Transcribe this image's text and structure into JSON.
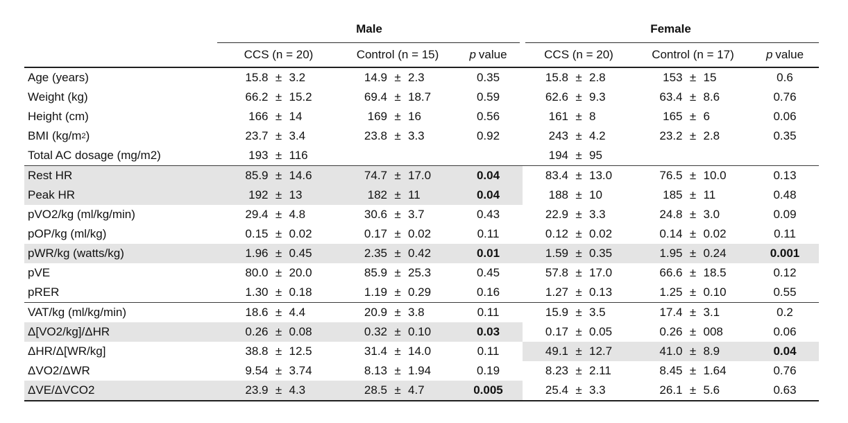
{
  "colors": {
    "row_highlight": "#e4e4e4",
    "rule_heavy": "#1f1f1f",
    "rule_light": "#3a3a3a",
    "text": "#111111"
  },
  "table": {
    "pm_symbol": "±",
    "groups": {
      "male": "Male",
      "female": "Female"
    },
    "header": {
      "male_ccs": "CCS (n = 20)",
      "male_control": "Control (n = 15)",
      "male_p_italic": "p",
      "male_p_rest": "value",
      "female_ccs": "CCS (n = 20)",
      "female_control": "Control (n = 17)",
      "female_p_italic": "p",
      "female_p_rest": "value"
    },
    "rows": [
      {
        "label": "Age (years)",
        "sup": "",
        "tail": "",
        "ccs_m": {
          "mean": "15.8",
          "sd": "3.2"
        },
        "ctrl_m": {
          "mean": "14.9",
          "sd": "2.3"
        },
        "p_m": {
          "text": "0.35",
          "bold": false
        },
        "ccs_f": {
          "mean": "15.8",
          "sd": "2.8"
        },
        "ctrl_f": {
          "mean": "153",
          "sd": "15"
        },
        "p_f": {
          "text": "0.6",
          "bold": false
        },
        "shade": "none",
        "rule_below": false
      },
      {
        "label": "Weight (kg)",
        "sup": "",
        "tail": "",
        "ccs_m": {
          "mean": "66.2",
          "sd": "15.2"
        },
        "ctrl_m": {
          "mean": "69.4",
          "sd": "18.7"
        },
        "p_m": {
          "text": "0.59",
          "bold": false
        },
        "ccs_f": {
          "mean": "62.6",
          "sd": "9.3"
        },
        "ctrl_f": {
          "mean": "63.4",
          "sd": "8.6"
        },
        "p_f": {
          "text": "0.76",
          "bold": false
        },
        "shade": "none",
        "rule_below": false
      },
      {
        "label": "Height (cm)",
        "sup": "",
        "tail": "",
        "ccs_m": {
          "mean": "166",
          "sd": "14"
        },
        "ctrl_m": {
          "mean": "169",
          "sd": "16"
        },
        "p_m": {
          "text": "0.56",
          "bold": false
        },
        "ccs_f": {
          "mean": "161",
          "sd": "8"
        },
        "ctrl_f": {
          "mean": "165",
          "sd": "6"
        },
        "p_f": {
          "text": "0.06",
          "bold": false
        },
        "shade": "none",
        "rule_below": false
      },
      {
        "label": "BMI (kg/m",
        "sup": "2",
        "tail": ")",
        "ccs_m": {
          "mean": "23.7",
          "sd": "3.4"
        },
        "ctrl_m": {
          "mean": "23.8",
          "sd": "3.3"
        },
        "p_m": {
          "text": "0.92",
          "bold": false
        },
        "ccs_f": {
          "mean": "243",
          "sd": "4.2"
        },
        "ctrl_f": {
          "mean": "23.2",
          "sd": "2.8"
        },
        "p_f": {
          "text": "0.35",
          "bold": false
        },
        "shade": "none",
        "rule_below": false
      },
      {
        "label": "Total AC dosage (mg/m2)",
        "sup": "",
        "tail": "",
        "ccs_m": {
          "mean": "193",
          "sd": "116"
        },
        "ctrl_m": {
          "mean": "",
          "sd": ""
        },
        "p_m": {
          "text": "",
          "bold": false
        },
        "ccs_f": {
          "mean": "194",
          "sd": "95"
        },
        "ctrl_f": {
          "mean": "",
          "sd": ""
        },
        "p_f": {
          "text": "",
          "bold": false
        },
        "shade": "none",
        "rule_below": true
      },
      {
        "label": "Rest HR",
        "sup": "",
        "tail": "",
        "ccs_m": {
          "mean": "85.9",
          "sd": "14.6"
        },
        "ctrl_m": {
          "mean": "74.7",
          "sd": "17.0"
        },
        "p_m": {
          "text": "0.04",
          "bold": true
        },
        "ccs_f": {
          "mean": "83.4",
          "sd": "13.0"
        },
        "ctrl_f": {
          "mean": "76.5",
          "sd": "10.0"
        },
        "p_f": {
          "text": "0.13",
          "bold": false
        },
        "shade": "male",
        "rule_below": false
      },
      {
        "label": "Peak HR",
        "sup": "",
        "tail": "",
        "ccs_m": {
          "mean": "192",
          "sd": "13"
        },
        "ctrl_m": {
          "mean": "182",
          "sd": "11"
        },
        "p_m": {
          "text": "0.04",
          "bold": true
        },
        "ccs_f": {
          "mean": "188",
          "sd": "10"
        },
        "ctrl_f": {
          "mean": "185",
          "sd": "11"
        },
        "p_f": {
          "text": "0.48",
          "bold": false
        },
        "shade": "male",
        "rule_below": false
      },
      {
        "label": "pVO2/kg (ml/kg/min)",
        "sup": "",
        "tail": "",
        "ccs_m": {
          "mean": "29.4",
          "sd": "4.8"
        },
        "ctrl_m": {
          "mean": "30.6",
          "sd": "3.7"
        },
        "p_m": {
          "text": "0.43",
          "bold": false
        },
        "ccs_f": {
          "mean": "22.9",
          "sd": "3.3"
        },
        "ctrl_f": {
          "mean": "24.8",
          "sd": "3.0"
        },
        "p_f": {
          "text": "0.09",
          "bold": false
        },
        "shade": "none",
        "rule_below": false
      },
      {
        "label": "pOP/kg (ml/kg)",
        "sup": "",
        "tail": "",
        "ccs_m": {
          "mean": "0.15",
          "sd": "0.02"
        },
        "ctrl_m": {
          "mean": "0.17",
          "sd": "0.02"
        },
        "p_m": {
          "text": "0.11",
          "bold": false
        },
        "ccs_f": {
          "mean": "0.12",
          "sd": "0.02"
        },
        "ctrl_f": {
          "mean": "0.14",
          "sd": "0.02"
        },
        "p_f": {
          "text": "0.11",
          "bold": false
        },
        "shade": "none",
        "rule_below": false
      },
      {
        "label": "pWR/kg (watts/kg)",
        "sup": "",
        "tail": "",
        "ccs_m": {
          "mean": "1.96",
          "sd": "0.45"
        },
        "ctrl_m": {
          "mean": "2.35",
          "sd": "0.42"
        },
        "p_m": {
          "text": "0.01",
          "bold": true
        },
        "ccs_f": {
          "mean": "1.59",
          "sd": "0.35"
        },
        "ctrl_f": {
          "mean": "1.95",
          "sd": "0.24"
        },
        "p_f": {
          "text": "0.001",
          "bold": true
        },
        "shade": "full",
        "rule_below": false
      },
      {
        "label": "pVE",
        "sup": "",
        "tail": "",
        "ccs_m": {
          "mean": "80.0",
          "sd": "20.0"
        },
        "ctrl_m": {
          "mean": "85.9",
          "sd": "25.3"
        },
        "p_m": {
          "text": "0.45",
          "bold": false
        },
        "ccs_f": {
          "mean": "57.8",
          "sd": "17.0"
        },
        "ctrl_f": {
          "mean": "66.6",
          "sd": "18.5"
        },
        "p_f": {
          "text": "0.12",
          "bold": false
        },
        "shade": "none",
        "rule_below": false
      },
      {
        "label": "pRER",
        "sup": "",
        "tail": "",
        "ccs_m": {
          "mean": "1.30",
          "sd": "0.18"
        },
        "ctrl_m": {
          "mean": "1.19",
          "sd": "0.29"
        },
        "p_m": {
          "text": "0.16",
          "bold": false
        },
        "ccs_f": {
          "mean": "1.27",
          "sd": "0.13"
        },
        "ctrl_f": {
          "mean": "1.25",
          "sd": "0.10"
        },
        "p_f": {
          "text": "0.55",
          "bold": false
        },
        "shade": "none",
        "rule_below": true
      },
      {
        "label": "VAT/kg (ml/kg/min)",
        "sup": "",
        "tail": "",
        "ccs_m": {
          "mean": "18.6",
          "sd": "4.4"
        },
        "ctrl_m": {
          "mean": "20.9",
          "sd": "3.8"
        },
        "p_m": {
          "text": "0.11",
          "bold": false
        },
        "ccs_f": {
          "mean": "15.9",
          "sd": "3.5"
        },
        "ctrl_f": {
          "mean": "17.4",
          "sd": "3.1"
        },
        "p_f": {
          "text": "0.2",
          "bold": false
        },
        "shade": "none",
        "rule_below": false
      },
      {
        "label": "Δ[VO2/kg]/ΔHR",
        "sup": "",
        "tail": "",
        "ccs_m": {
          "mean": "0.26",
          "sd": "0.08"
        },
        "ctrl_m": {
          "mean": "0.32",
          "sd": "0.10"
        },
        "p_m": {
          "text": "0.03",
          "bold": true
        },
        "ccs_f": {
          "mean": "0.17",
          "sd": "0.05"
        },
        "ctrl_f": {
          "mean": "0.26",
          "sd": "008"
        },
        "p_f": {
          "text": "0.06",
          "bold": false
        },
        "shade": "male",
        "rule_below": false
      },
      {
        "label": "ΔHR/Δ[WR/kg]",
        "sup": "",
        "tail": "",
        "ccs_m": {
          "mean": "38.8",
          "sd": "12.5"
        },
        "ctrl_m": {
          "mean": "31.4",
          "sd": "14.0"
        },
        "p_m": {
          "text": "0.11",
          "bold": false
        },
        "ccs_f": {
          "mean": "49.1",
          "sd": "12.7"
        },
        "ctrl_f": {
          "mean": "41.0",
          "sd": "8.9"
        },
        "p_f": {
          "text": "0.04",
          "bold": true
        },
        "shade": "female",
        "rule_below": false
      },
      {
        "label": "ΔVO2/ΔWR",
        "sup": "",
        "tail": "",
        "ccs_m": {
          "mean": "9.54",
          "sd": "3.74"
        },
        "ctrl_m": {
          "mean": "8.13",
          "sd": "1.94"
        },
        "p_m": {
          "text": "0.19",
          "bold": false
        },
        "ccs_f": {
          "mean": "8.23",
          "sd": "2.11"
        },
        "ctrl_f": {
          "mean": "8.45",
          "sd": "1.64"
        },
        "p_f": {
          "text": "0.76",
          "bold": false
        },
        "shade": "none",
        "rule_below": false
      },
      {
        "label": "ΔVE/ΔVCO2",
        "sup": "",
        "tail": "",
        "ccs_m": {
          "mean": "23.9",
          "sd": "4.3"
        },
        "ctrl_m": {
          "mean": "28.5",
          "sd": "4.7"
        },
        "p_m": {
          "text": "0.005",
          "bold": true
        },
        "ccs_f": {
          "mean": "25.4",
          "sd": "3.3"
        },
        "ctrl_f": {
          "mean": "26.1",
          "sd": "5.6"
        },
        "p_f": {
          "text": "0.63",
          "bold": false
        },
        "shade": "male",
        "rule_below": false
      }
    ]
  }
}
